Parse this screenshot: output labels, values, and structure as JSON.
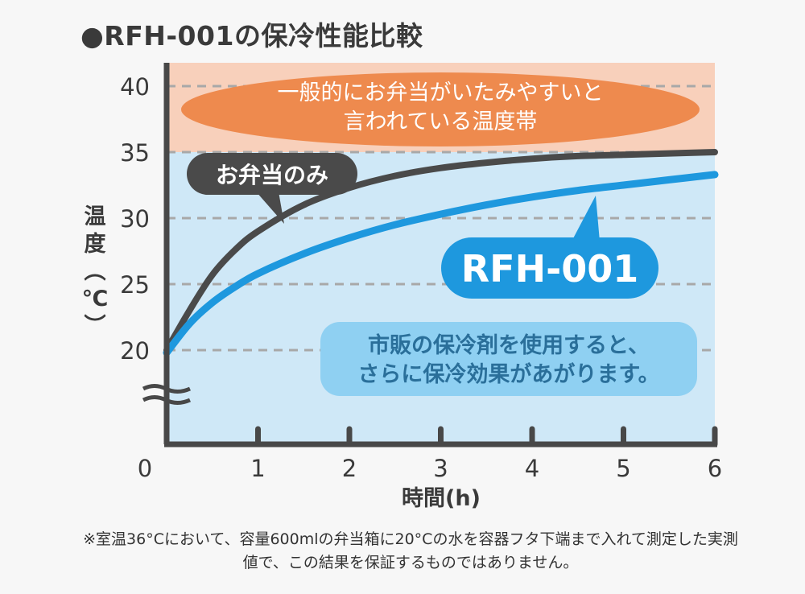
{
  "title": "●RFH-001の保冷性能比較",
  "footnote": "※室温36°Cにおいて、容量600mlの弁当箱に20°Cの水を容器フタ下端まで入れて測定した実測値で、この結果を保証するものではありません。",
  "colors": {
    "axis": "#484848",
    "danger_band": "#f8d0bb",
    "safe_band": "#cfe8f7",
    "danger_bubble": "#ee8a4e",
    "series_bento_only": "#4a4a4a",
    "series_rfh001": "#1e98de",
    "note_bubble": "#8fd0f2",
    "grid": "#a8a8a8"
  },
  "chart_data": {
    "type": "line",
    "xlabel": "時間(h)",
    "ylabel": "温度(℃)",
    "xlim": [
      0,
      6
    ],
    "ylim": [
      15,
      41
    ],
    "y_axis_break": true,
    "x_ticks": [
      "0",
      "1",
      "2",
      "3",
      "4",
      "5",
      "6"
    ],
    "y_ticks": [
      "20",
      "25",
      "30",
      "35",
      "40"
    ],
    "bands": [
      {
        "from": 35,
        "to": 41,
        "label": "一般的にお弁当がいたみやすいと言われている温度帯"
      }
    ],
    "series": [
      {
        "name": "お弁当のみ",
        "x": [
          0,
          0.25,
          0.5,
          0.75,
          1,
          1.5,
          2,
          2.5,
          3,
          3.5,
          4,
          4.5,
          5,
          5.5,
          6
        ],
        "y": [
          20,
          23,
          25.7,
          27.6,
          29,
          31,
          32.3,
          33.2,
          33.8,
          34.2,
          34.5,
          34.7,
          34.8,
          34.9,
          35
        ]
      },
      {
        "name": "RFH-001",
        "x": [
          0,
          0.25,
          0.5,
          0.75,
          1,
          1.5,
          2,
          2.5,
          3,
          3.5,
          4,
          4.5,
          5,
          5.5,
          6
        ],
        "y": [
          19.8,
          22,
          23.6,
          24.8,
          25.8,
          27.3,
          28.5,
          29.5,
          30.3,
          31,
          31.6,
          32.1,
          32.5,
          32.9,
          33.3
        ]
      }
    ],
    "annotations": [
      "市販の保冷剤を使用すると、",
      "さらに保冷効果があがります。"
    ]
  }
}
